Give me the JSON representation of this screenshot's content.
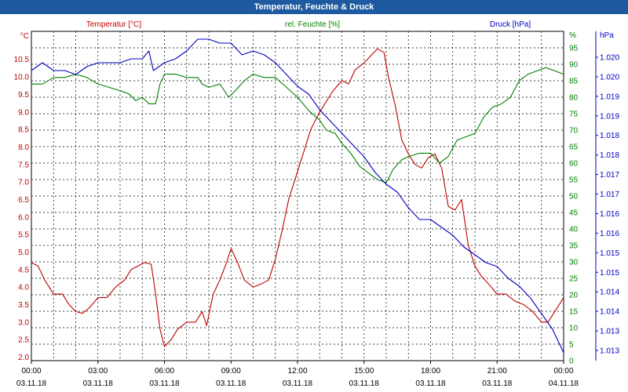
{
  "window": {
    "title": "Temperatur, Feuchte & Druck"
  },
  "chart_data": {
    "type": "line",
    "title": "Temperatur, Feuchte & Druck",
    "x_hours": [
      0,
      1,
      2,
      3,
      4,
      5,
      6,
      7,
      8,
      9,
      10,
      11,
      12,
      13,
      14,
      15,
      16,
      17,
      18,
      19,
      20,
      21,
      22,
      23,
      24
    ],
    "x_ticks": [
      {
        "hour": 0,
        "time": "00:00",
        "date": "03.11.18"
      },
      {
        "hour": 3,
        "time": "03:00",
        "date": "03.11.18"
      },
      {
        "hour": 6,
        "time": "06:00",
        "date": "03.11.18"
      },
      {
        "hour": 9,
        "time": "09:00",
        "date": "03.11.18"
      },
      {
        "hour": 12,
        "time": "12:00",
        "date": "03.11.18"
      },
      {
        "hour": 15,
        "time": "15:00",
        "date": "03.11.18"
      },
      {
        "hour": 18,
        "time": "18:00",
        "date": "03.11.18"
      },
      {
        "hour": 21,
        "time": "21:00",
        "date": "03.11.18"
      },
      {
        "hour": 24,
        "time": "00:00",
        "date": "04.11.18"
      }
    ],
    "axes": {
      "temperature": {
        "label": "Temperatur [°C]",
        "unit_label": "°C",
        "min": 1.9,
        "max": 11.3,
        "color": "#c00000",
        "ticks": [
          "2.0",
          "2.5",
          "3.0",
          "3.5",
          "4.0",
          "4.5",
          "5.0",
          "5.5",
          "6.0",
          "6.5",
          "7.0",
          "7.5",
          "8.0",
          "8.5",
          "9.0",
          "9.5",
          "10.0",
          "10.5"
        ]
      },
      "humidity": {
        "label": "rel. Feuchte [%]",
        "unit_label": "%",
        "min": 0,
        "max": 100,
        "color": "#008000",
        "ticks": [
          "0",
          "5",
          "10",
          "15",
          "20",
          "25",
          "30",
          "35",
          "40",
          "45",
          "50",
          "55",
          "60",
          "65",
          "70",
          "75",
          "80",
          "85",
          "90",
          "95"
        ]
      },
      "pressure": {
        "label": "Druck [hPa]",
        "unit_label": "hPa",
        "min": 1012.6,
        "max": 1021.0,
        "color": "#0000c0",
        "ticks": [
          "1.013",
          "1.013",
          "1.014",
          "1.014",
          "1.015",
          "1.015",
          "1.016",
          "1.016",
          "1.017",
          "1.017",
          "1.018",
          "1.018",
          "1.019",
          "1.019",
          "1.020",
          "1.020"
        ]
      }
    },
    "series": [
      {
        "name": "Temperatur",
        "axis": "temperature",
        "color": "#c00000",
        "points": [
          [
            0,
            4.7
          ],
          [
            0.3,
            4.6
          ],
          [
            0.6,
            4.2
          ],
          [
            1,
            3.8
          ],
          [
            1.4,
            3.8
          ],
          [
            1.7,
            3.5
          ],
          [
            2,
            3.3
          ],
          [
            2.3,
            3.25
          ],
          [
            2.6,
            3.4
          ],
          [
            3,
            3.7
          ],
          [
            3.4,
            3.7
          ],
          [
            3.8,
            4.0
          ],
          [
            4.2,
            4.2
          ],
          [
            4.5,
            4.5
          ],
          [
            4.8,
            4.6
          ],
          [
            5.1,
            4.7
          ],
          [
            5.4,
            4.65
          ],
          [
            5.6,
            3.8
          ],
          [
            5.8,
            2.8
          ],
          [
            6,
            2.3
          ],
          [
            6.3,
            2.5
          ],
          [
            6.6,
            2.8
          ],
          [
            7,
            3.0
          ],
          [
            7.4,
            3.0
          ],
          [
            7.7,
            3.3
          ],
          [
            7.9,
            2.9
          ],
          [
            8.2,
            3.8
          ],
          [
            8.5,
            4.2
          ],
          [
            8.8,
            4.7
          ],
          [
            9,
            5.1
          ],
          [
            9.3,
            4.7
          ],
          [
            9.6,
            4.2
          ],
          [
            10,
            4.0
          ],
          [
            10.4,
            4.1
          ],
          [
            10.7,
            4.2
          ],
          [
            11,
            4.8
          ],
          [
            11.3,
            5.6
          ],
          [
            11.6,
            6.5
          ],
          [
            12,
            7.3
          ],
          [
            12.3,
            7.9
          ],
          [
            12.6,
            8.5
          ],
          [
            13,
            9.0
          ],
          [
            13.3,
            9.3
          ],
          [
            13.6,
            9.6
          ],
          [
            14,
            9.9
          ],
          [
            14.3,
            9.8
          ],
          [
            14.6,
            10.2
          ],
          [
            15,
            10.4
          ],
          [
            15.3,
            10.6
          ],
          [
            15.6,
            10.8
          ],
          [
            15.9,
            10.7
          ],
          [
            16.1,
            10.0
          ],
          [
            16.4,
            9.2
          ],
          [
            16.7,
            8.2
          ],
          [
            17,
            7.8
          ],
          [
            17.3,
            7.5
          ],
          [
            17.6,
            7.4
          ],
          [
            17.9,
            7.7
          ],
          [
            18.2,
            7.8
          ],
          [
            18.5,
            7.4
          ],
          [
            18.8,
            6.3
          ],
          [
            19.1,
            6.2
          ],
          [
            19.4,
            6.5
          ],
          [
            19.7,
            5.2
          ],
          [
            20,
            4.6
          ],
          [
            20.3,
            4.3
          ],
          [
            20.6,
            4.1
          ],
          [
            21,
            3.8
          ],
          [
            21.4,
            3.8
          ],
          [
            21.8,
            3.6
          ],
          [
            22.2,
            3.5
          ],
          [
            22.6,
            3.3
          ],
          [
            23,
            3.0
          ],
          [
            23.3,
            3.0
          ],
          [
            23.6,
            3.3
          ],
          [
            24,
            3.7
          ]
        ]
      },
      {
        "name": "rel. Feuchte",
        "axis": "humidity",
        "color": "#008000",
        "points": [
          [
            0,
            84
          ],
          [
            0.5,
            84
          ],
          [
            1,
            86
          ],
          [
            1.5,
            86
          ],
          [
            2,
            87
          ],
          [
            2.5,
            86
          ],
          [
            3,
            84
          ],
          [
            3.5,
            83
          ],
          [
            4,
            82
          ],
          [
            4.4,
            81
          ],
          [
            4.7,
            79
          ],
          [
            5,
            80
          ],
          [
            5.3,
            78
          ],
          [
            5.6,
            78
          ],
          [
            5.8,
            84
          ],
          [
            6,
            87
          ],
          [
            6.5,
            87
          ],
          [
            7,
            86
          ],
          [
            7.5,
            86
          ],
          [
            7.7,
            84
          ],
          [
            8,
            83
          ],
          [
            8.5,
            84
          ],
          [
            8.9,
            80
          ],
          [
            9.2,
            82
          ],
          [
            9.6,
            85
          ],
          [
            10,
            87
          ],
          [
            10.5,
            86
          ],
          [
            11,
            86
          ],
          [
            11.5,
            83
          ],
          [
            12,
            80
          ],
          [
            12.5,
            76
          ],
          [
            13,
            73
          ],
          [
            13.3,
            70
          ],
          [
            13.7,
            69
          ],
          [
            14,
            66
          ],
          [
            14.4,
            63
          ],
          [
            14.8,
            59
          ],
          [
            15.2,
            57
          ],
          [
            15.6,
            55
          ],
          [
            16,
            54
          ],
          [
            16.3,
            58
          ],
          [
            16.7,
            61
          ],
          [
            17,
            62
          ],
          [
            17.5,
            63
          ],
          [
            18,
            63
          ],
          [
            18.4,
            60
          ],
          [
            18.8,
            62
          ],
          [
            19.2,
            67
          ],
          [
            19.6,
            68
          ],
          [
            20,
            69
          ],
          [
            20.4,
            74
          ],
          [
            20.8,
            77
          ],
          [
            21.2,
            78
          ],
          [
            21.6,
            80
          ],
          [
            22,
            85
          ],
          [
            22.4,
            87
          ],
          [
            22.8,
            88
          ],
          [
            23.2,
            89
          ],
          [
            23.6,
            88
          ],
          [
            24,
            87
          ]
        ]
      },
      {
        "name": "Druck",
        "axis": "pressure",
        "color": "#0000c0",
        "points": [
          [
            0,
            1020.0
          ],
          [
            0.5,
            1020.2
          ],
          [
            1,
            1020.0
          ],
          [
            1.5,
            1020.0
          ],
          [
            2,
            1019.9
          ],
          [
            2.5,
            1020.1
          ],
          [
            3,
            1020.2
          ],
          [
            3.5,
            1020.2
          ],
          [
            4,
            1020.2
          ],
          [
            4.5,
            1020.3
          ],
          [
            5,
            1020.3
          ],
          [
            5.3,
            1020.5
          ],
          [
            5.5,
            1020.0
          ],
          [
            6,
            1020.2
          ],
          [
            6.5,
            1020.3
          ],
          [
            7,
            1020.5
          ],
          [
            7.5,
            1020.8
          ],
          [
            8,
            1020.8
          ],
          [
            8.5,
            1020.7
          ],
          [
            9,
            1020.7
          ],
          [
            9.5,
            1020.4
          ],
          [
            10,
            1020.5
          ],
          [
            10.5,
            1020.4
          ],
          [
            11,
            1020.2
          ],
          [
            11.5,
            1019.9
          ],
          [
            12,
            1019.6
          ],
          [
            12.5,
            1019.4
          ],
          [
            13,
            1019.0
          ],
          [
            13.5,
            1018.7
          ],
          [
            14,
            1018.4
          ],
          [
            14.5,
            1018.1
          ],
          [
            15,
            1017.8
          ],
          [
            15.5,
            1017.4
          ],
          [
            16,
            1017.1
          ],
          [
            16.5,
            1016.9
          ],
          [
            17,
            1016.5
          ],
          [
            17.5,
            1016.2
          ],
          [
            18,
            1016.2
          ],
          [
            18.5,
            1016.0
          ],
          [
            19,
            1015.8
          ],
          [
            19.5,
            1015.5
          ],
          [
            20,
            1015.3
          ],
          [
            20.5,
            1015.1
          ],
          [
            21,
            1015.0
          ],
          [
            21.5,
            1014.7
          ],
          [
            22,
            1014.5
          ],
          [
            22.5,
            1014.2
          ],
          [
            23,
            1013.8
          ],
          [
            23.5,
            1013.4
          ],
          [
            24,
            1012.8
          ]
        ]
      }
    ]
  }
}
